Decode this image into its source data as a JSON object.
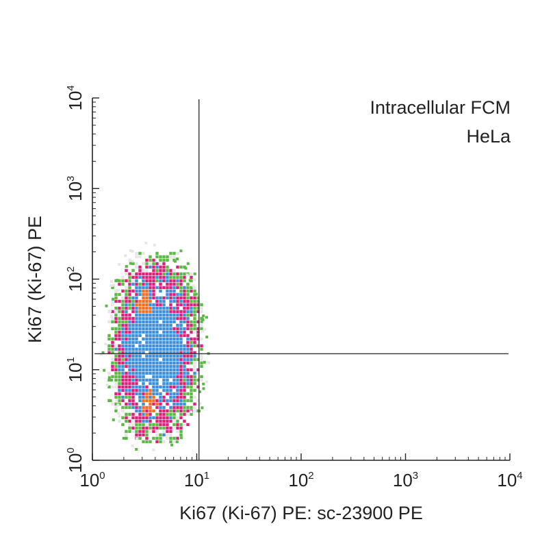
{
  "chart_data": {
    "type": "scatter",
    "subtype": "flow-cytometry-density-dot-plot",
    "title": "",
    "annotations": [
      "Intracellular FCM",
      "HeLa"
    ],
    "xlabel": "Ki67 (Ki-67) PE: sc-23900 PE",
    "ylabel": "Ki67 (Ki-67) PE",
    "x_scale": "log",
    "y_scale": "log",
    "xlim": [
      1,
      10000
    ],
    "ylim": [
      1,
      10000
    ],
    "x_ticks": [
      {
        "value": 1,
        "base": "10",
        "exp": "0"
      },
      {
        "value": 10,
        "base": "10",
        "exp": "1"
      },
      {
        "value": 100,
        "base": "10",
        "exp": "2"
      },
      {
        "value": 1000,
        "base": "10",
        "exp": "3"
      },
      {
        "value": 10000,
        "base": "10",
        "exp": "4"
      }
    ],
    "y_ticks": [
      {
        "value": 1,
        "base": "10",
        "exp": "0"
      },
      {
        "value": 10,
        "base": "10",
        "exp": "1"
      },
      {
        "value": 100,
        "base": "10",
        "exp": "2"
      },
      {
        "value": 1000,
        "base": "10",
        "exp": "3"
      },
      {
        "value": 10000,
        "base": "10",
        "exp": "4"
      }
    ],
    "quadrant_gates": {
      "x": 10.5,
      "y": 15
    },
    "density_colors": {
      "lowest": "#e6e6e6",
      "low": "#5cb946",
      "medium": "#d9227a",
      "high": "#3c8fd8",
      "highest": "#f36f21"
    },
    "population": {
      "x_range": [
        1.4,
        11
      ],
      "y_range": [
        1.6,
        200
      ],
      "cores": [
        {
          "x": 3.1,
          "y": 55
        },
        {
          "x": 3.3,
          "y": 4.5
        }
      ]
    },
    "grid": false,
    "legend": "none"
  }
}
